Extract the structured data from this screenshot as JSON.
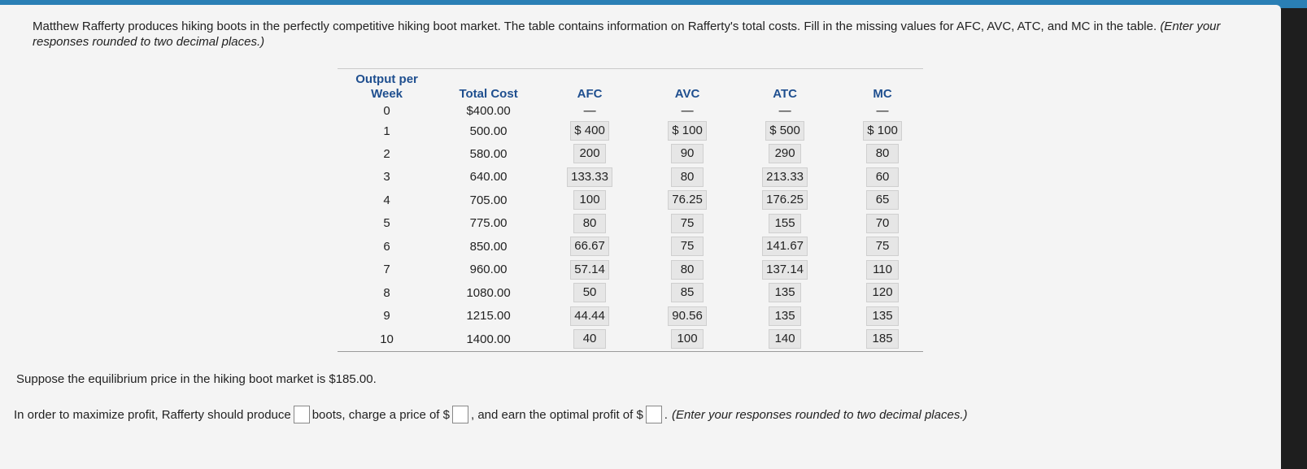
{
  "question": {
    "text": "Matthew Rafferty produces hiking boots in the perfectly competitive hiking boot market. The table contains information on Rafferty's total costs. Fill in the missing values for AFC, AVC, ATC, and MC in the table.",
    "instruction": "(Enter your responses rounded to two decimal places.)"
  },
  "table": {
    "headers": {
      "output": "Output per Week",
      "total_cost": "Total Cost",
      "afc": "AFC",
      "avc": "AVC",
      "atc": "ATC",
      "mc": "MC"
    },
    "rows": [
      {
        "output": "0",
        "tc": "$400.00",
        "afc": "—",
        "avc": "—",
        "atc": "—",
        "mc": "—"
      },
      {
        "output": "1",
        "tc": "500.00",
        "afc": "$ 400",
        "avc": "$ 100",
        "atc": "$ 500",
        "mc": "$ 100"
      },
      {
        "output": "2",
        "tc": "580.00",
        "afc": "200",
        "avc": "90",
        "atc": "290",
        "mc": "80"
      },
      {
        "output": "3",
        "tc": "640.00",
        "afc": "133.33",
        "avc": "80",
        "atc": "213.33",
        "mc": "60"
      },
      {
        "output": "4",
        "tc": "705.00",
        "afc": "100",
        "avc": "76.25",
        "atc": "176.25",
        "mc": "65"
      },
      {
        "output": "5",
        "tc": "775.00",
        "afc": "80",
        "avc": "75",
        "atc": "155",
        "mc": "70"
      },
      {
        "output": "6",
        "tc": "850.00",
        "afc": "66.67",
        "avc": "75",
        "atc": "141.67",
        "mc": "75"
      },
      {
        "output": "7",
        "tc": "960.00",
        "afc": "57.14",
        "avc": "80",
        "atc": "137.14",
        "mc": "110"
      },
      {
        "output": "8",
        "tc": "1080.00",
        "afc": "50",
        "avc": "85",
        "atc": "135",
        "mc": "120"
      },
      {
        "output": "9",
        "tc": "1215.00",
        "afc": "44.44",
        "avc": "90.56",
        "atc": "135",
        "mc": "135"
      },
      {
        "output": "10",
        "tc": "1400.00",
        "afc": "40",
        "avc": "100",
        "atc": "140",
        "mc": "185"
      }
    ]
  },
  "equilibrium_text": "Suppose the equilibrium price in the hiking boot market is $185.00.",
  "answer": {
    "part1": "In order to maximize profit, Rafferty should produce",
    "part2": "boots, charge a price of $",
    "part3": ", and earn the optimal profit of $",
    "part4": ".",
    "instruction": "(Enter your responses rounded to two decimal places.)"
  }
}
